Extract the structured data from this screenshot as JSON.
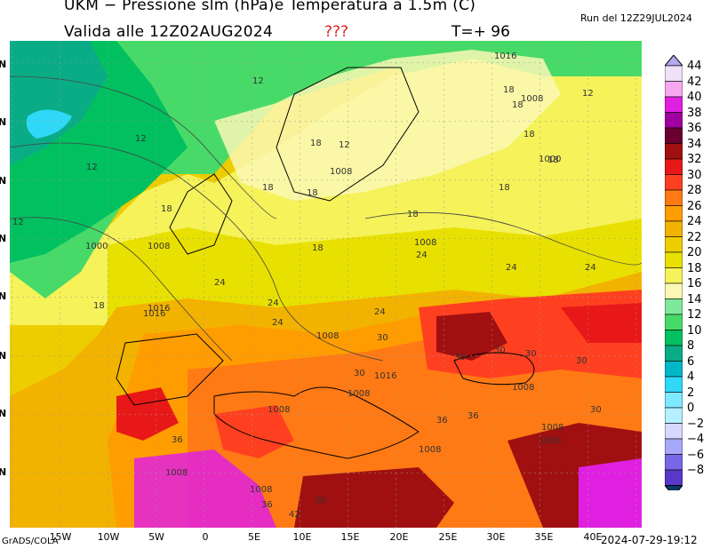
{
  "header": {
    "title_line1": "UKM − Pressione slm (hPa)e Temperatura a 1.5m (C)",
    "title_line2": "Valida alle 12Z02AUG2024",
    "warning": "???",
    "timestep": "T=+ 96",
    "run": "Run del 12Z29JUL2024"
  },
  "footer": {
    "credit": "GrADS/COLA",
    "timestamp": "2024-07-29-19:12"
  },
  "axes": {
    "lat_labels": [
      "N",
      "N",
      "N",
      "N",
      "N",
      "N",
      "N",
      "N"
    ],
    "lon_labels": [
      "15W",
      "10W",
      "5W",
      "0",
      "5E",
      "10E",
      "15E",
      "20E",
      "25E",
      "30E",
      "35E",
      "40E"
    ]
  },
  "legend": {
    "values": [
      "44",
      "42",
      "40",
      "38",
      "36",
      "34",
      "32",
      "30",
      "28",
      "26",
      "24",
      "22",
      "20",
      "18",
      "16",
      "14",
      "12",
      "10",
      "8",
      "6",
      "4",
      "2",
      "0",
      "−2",
      "−4",
      "−6",
      "−8"
    ],
    "colors": [
      "#f0e0f8",
      "#f8a8f0",
      "#e020e0",
      "#a000a0",
      "#6a0032",
      "#a01010",
      "#e81818",
      "#ff4020",
      "#ff7a14",
      "#ff9d00",
      "#f2b200",
      "#eecd00",
      "#e8e000",
      "#f5f25a",
      "#faf8b4",
      "#7fe89a",
      "#48da68",
      "#00c060",
      "#0aac86",
      "#00b8c8",
      "#30d8f8",
      "#80e8ff",
      "#b4f0ff",
      "#d8d8ff",
      "#a8a8f8",
      "#7868e8",
      "#5838c8"
    ],
    "top_arrow_color": "#b8a8f0",
    "bottom_arrow_color": "#063a6a"
  },
  "isobars": [
    "1016",
    "1008",
    "1016",
    "1000",
    "1000",
    "1008",
    "1008",
    "1016",
    "1016",
    "1008",
    "1008",
    "1008",
    "1008",
    "1008",
    "1008",
    "1000",
    "1008",
    "1008",
    "1008"
  ],
  "isotherms": [
    "12",
    "12",
    "12",
    "12",
    "12",
    "12",
    "18",
    "18",
    "18",
    "18",
    "18",
    "18",
    "18",
    "18",
    "18",
    "18",
    "18",
    "18",
    "24",
    "24",
    "24",
    "24",
    "24",
    "24",
    "24",
    "30",
    "30",
    "30",
    "30",
    "30",
    "30",
    "30",
    "36",
    "36",
    "36",
    "36",
    "36",
    "42"
  ]
}
